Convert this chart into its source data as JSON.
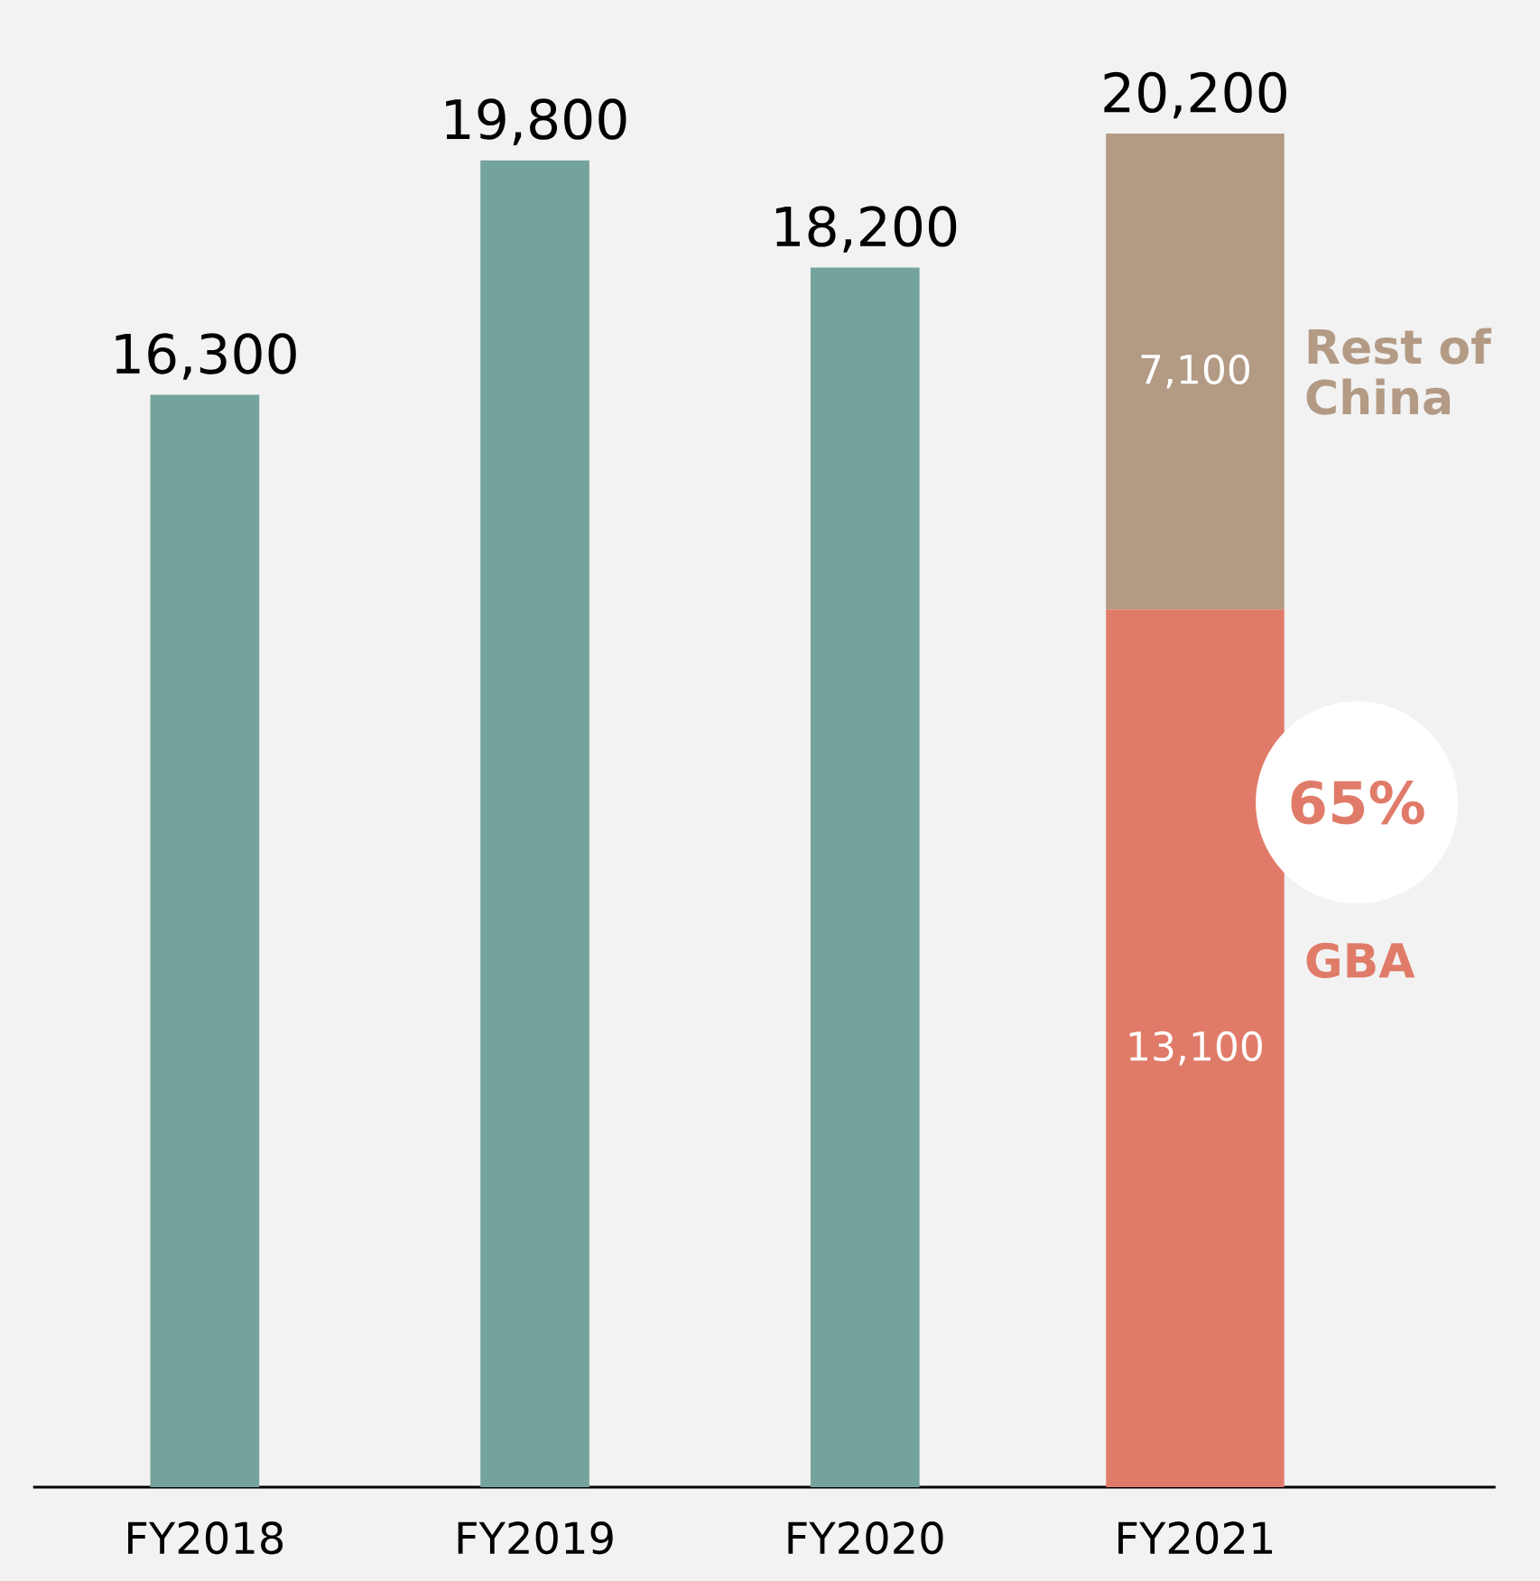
{
  "chart_data": {
    "type": "bar",
    "stacked": true,
    "categories": [
      "FY2018",
      "FY2019",
      "FY2020",
      "FY2021"
    ],
    "series": [
      {
        "color": "#74a39c",
        "values": [
          16300,
          19800,
          18200,
          null
        ]
      },
      {
        "name": "GBA",
        "color": "#e07b69",
        "values": [
          null,
          null,
          null,
          13100
        ],
        "value_labels": [
          null,
          null,
          null,
          "13,100"
        ]
      },
      {
        "name": "Rest of China",
        "color": "#b39a84",
        "values": [
          null,
          null,
          null,
          7100
        ],
        "value_labels": [
          null,
          null,
          null,
          "7,100"
        ]
      }
    ],
    "totals": [
      "16,300",
      "19,800",
      "18,200",
      "20,200"
    ],
    "annotations": [
      "65%"
    ],
    "tick_labels": "x"
  }
}
